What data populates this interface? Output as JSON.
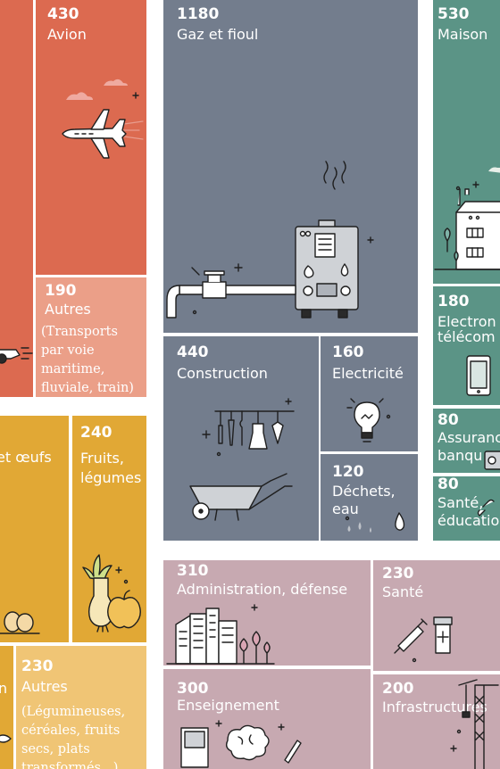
{
  "colors": {
    "transport_dark": "#dc6a50",
    "transport_light": "#eb9f88",
    "energy": "#737d8d",
    "food_dark": "#e1a835",
    "food_light": "#f0c575",
    "services_green": "#5b9486",
    "public_pink": "#c7a9b1"
  },
  "tiles": {
    "avion": {
      "value": "430",
      "label": "Avion",
      "icon": "airplane-icon"
    },
    "transport_autres": {
      "value": "190",
      "label": "Autres",
      "note": "(Transports par voie maritime, fluviale, train)"
    },
    "gaz": {
      "value": "1180",
      "label": "Gaz et fioul",
      "icon": "boiler-pipe-icon"
    },
    "maison": {
      "value": "530",
      "label": "Maison",
      "icon": "house-icon"
    },
    "construction": {
      "value": "440",
      "label": "Construction",
      "icon": "tools-wheelbarrow-icon"
    },
    "electricite": {
      "value": "160",
      "label": "Electricité",
      "icon": "lightbulb-icon"
    },
    "dechets": {
      "value": "120",
      "label": "Déchets,",
      "label2": "eau",
      "icon": "water-drops-icon"
    },
    "electronique": {
      "value": "180",
      "label": "Electron",
      "label2": "télécom",
      "icon": "smartphone-icon"
    },
    "assurance": {
      "value": "80",
      "label": "Assuranc",
      "label2": "banqu",
      "icon": "safe-icon"
    },
    "sante_edu": {
      "value": "80",
      "label": "Santé,",
      "label2": "éducatio",
      "icon": "link-icon"
    },
    "oeufs": {
      "label": "et œufs",
      "icon": "eggs-icon"
    },
    "fruits": {
      "value": "240",
      "label": "Fruits,",
      "label2": "légumes",
      "icon": "leek-apple-icon"
    },
    "food_left_bottom": {
      "label": "n",
      "icon": "fish-icon"
    },
    "food_autres": {
      "value": "230",
      "label": "Autres",
      "note": "(Légumineuses, céréales, fruits secs, plats transformés...)"
    },
    "administration": {
      "value": "310",
      "label": "Administration, défense",
      "icon": "city-icon"
    },
    "sante": {
      "value": "230",
      "label": "Santé",
      "icon": "syringe-pills-icon"
    },
    "enseignement": {
      "value": "300",
      "label": "Enseignement",
      "icon": "book-brain-pen-icon"
    },
    "infrastructures": {
      "value": "200",
      "label": "Infrastructures",
      "icon": "crane-icon"
    }
  }
}
